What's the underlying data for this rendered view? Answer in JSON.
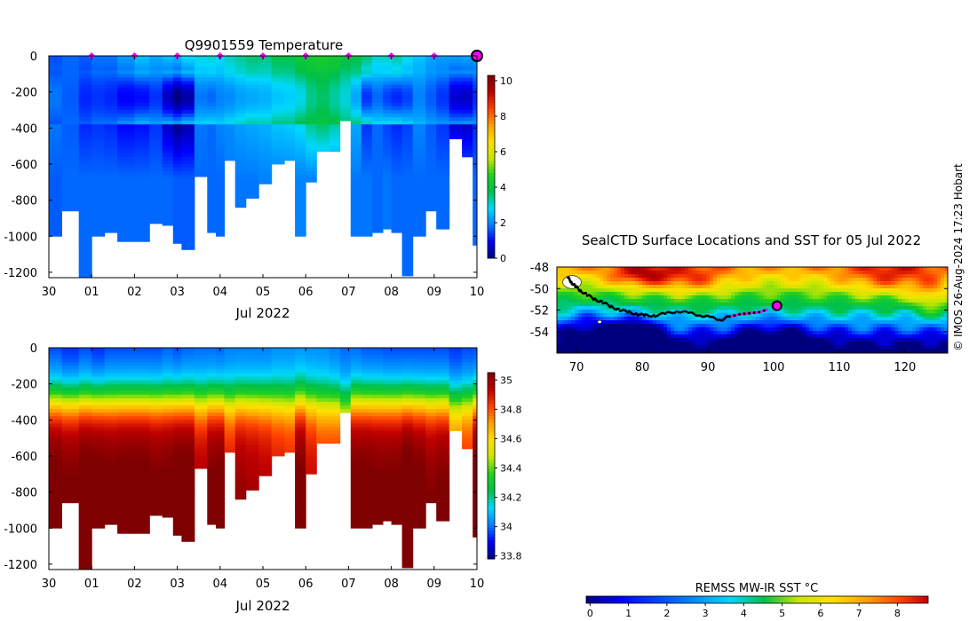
{
  "colors": {
    "jet": [
      "#00007f",
      "#0000ff",
      "#0080ff",
      "#00d8ff",
      "#00c04a",
      "#20d020",
      "#c8e600",
      "#ffe000",
      "#ffa000",
      "#ff4000",
      "#c00000",
      "#7f0000"
    ],
    "float_marker": "#ff00ff",
    "track": "#000000"
  },
  "chart_data": [
    {
      "type": "heatmap",
      "title": "Q9901559  Temperature",
      "xlabel": "Jul 2022",
      "x_ticks": [
        "30",
        "01",
        "02",
        "03",
        "04",
        "05",
        "06",
        "07",
        "08",
        "09",
        "10"
      ],
      "y_ticks": [
        "0",
        "-200",
        "-400",
        "-600",
        "-800",
        "-1000",
        "-1200"
      ],
      "ylim": [
        -1230,
        0
      ],
      "colorbar": {
        "min": 0,
        "max": 10.3,
        "ticks": [
          "10",
          "8",
          "6",
          "4",
          "2",
          "0"
        ]
      },
      "profile_markers_days": [
        1,
        2,
        3,
        4,
        5,
        6,
        7,
        8,
        9
      ],
      "latest_marker_day": 10,
      "profiles": [
        {
          "t": 0.0,
          "depth": 1000,
          "surf": 1.5,
          "core": 1.8,
          "deep": 1.6
        },
        {
          "t": 0.3,
          "depth": 860,
          "surf": 1.7,
          "core": 1.6,
          "deep": 1.7
        },
        {
          "t": 0.7,
          "depth": 1230,
          "surf": 1.6,
          "core": 1.2,
          "deep": 1.7
        },
        {
          "t": 1.0,
          "depth": 1000,
          "surf": 1.8,
          "core": 1.3,
          "deep": 1.7
        },
        {
          "t": 1.3,
          "depth": 980,
          "surf": 1.8,
          "core": 1.2,
          "deep": 1.7
        },
        {
          "t": 1.6,
          "depth": 1030,
          "surf": 2.2,
          "core": 0.9,
          "deep": 1.7
        },
        {
          "t": 2.0,
          "depth": 1030,
          "surf": 2.6,
          "core": 1.0,
          "deep": 1.7
        },
        {
          "t": 2.35,
          "depth": 930,
          "surf": 2.3,
          "core": 1.3,
          "deep": 1.7
        },
        {
          "t": 2.65,
          "depth": 940,
          "surf": 2.6,
          "core": 0.5,
          "deep": 1.7
        },
        {
          "t": 2.9,
          "depth": 1040,
          "surf": 2.5,
          "core": 0.0,
          "deep": 1.6
        },
        {
          "t": 3.1,
          "depth": 1075,
          "surf": 2.9,
          "core": 0.3,
          "deep": 1.6
        },
        {
          "t": 3.4,
          "depth": 670,
          "surf": 3.0,
          "core": 1.8,
          "deep": 1.7
        },
        {
          "t": 3.7,
          "depth": 980,
          "surf": 3.1,
          "core": 1.7,
          "deep": 1.7
        },
        {
          "t": 3.9,
          "depth": 1000,
          "surf": 2.9,
          "core": 1.9,
          "deep": 1.7
        },
        {
          "t": 4.1,
          "depth": 580,
          "surf": 3.2,
          "core": 2.0,
          "deep": 1.8
        },
        {
          "t": 4.35,
          "depth": 840,
          "surf": 3.4,
          "core": 2.2,
          "deep": 1.8
        },
        {
          "t": 4.6,
          "depth": 790,
          "surf": 3.6,
          "core": 2.3,
          "deep": 1.8
        },
        {
          "t": 4.9,
          "depth": 710,
          "surf": 3.5,
          "core": 2.4,
          "deep": 1.9
        },
        {
          "t": 5.2,
          "depth": 600,
          "surf": 3.8,
          "core": 2.6,
          "deep": 1.9
        },
        {
          "t": 5.5,
          "depth": 580,
          "surf": 3.8,
          "core": 2.7,
          "deep": 1.9
        },
        {
          "t": 5.75,
          "depth": 1000,
          "surf": 4.2,
          "core": 2.9,
          "deep": 1.9
        },
        {
          "t": 6.0,
          "depth": 700,
          "surf": 4.3,
          "core": 3.4,
          "deep": 1.9
        },
        {
          "t": 6.25,
          "depth": 530,
          "surf": 4.4,
          "core": 3.6,
          "deep": 1.9
        },
        {
          "t": 6.55,
          "depth": 530,
          "surf": 4.3,
          "core": 3.3,
          "deep": 1.9
        },
        {
          "t": 6.8,
          "depth": 360,
          "surf": 3.9,
          "core": 3.0,
          "deep": 1.9
        },
        {
          "t": 7.05,
          "depth": 1000,
          "surf": 3.9,
          "core": 2.3,
          "deep": 1.8
        },
        {
          "t": 7.3,
          "depth": 1000,
          "surf": 3.6,
          "core": 1.3,
          "deep": 1.8
        },
        {
          "t": 7.55,
          "depth": 980,
          "surf": 3.1,
          "core": 1.7,
          "deep": 1.7
        },
        {
          "t": 7.8,
          "depth": 960,
          "surf": 3.2,
          "core": 1.4,
          "deep": 1.8
        },
        {
          "t": 8.0,
          "depth": 980,
          "surf": 3.4,
          "core": 1.2,
          "deep": 1.7
        },
        {
          "t": 8.25,
          "depth": 1220,
          "surf": 3.0,
          "core": 1.4,
          "deep": 1.7
        },
        {
          "t": 8.5,
          "depth": 1000,
          "surf": 2.6,
          "core": 1.9,
          "deep": 1.7
        },
        {
          "t": 8.8,
          "depth": 860,
          "surf": 2.3,
          "core": 1.6,
          "deep": 1.7
        },
        {
          "t": 9.05,
          "depth": 960,
          "surf": 2.2,
          "core": 1.3,
          "deep": 1.7
        },
        {
          "t": 9.35,
          "depth": 460,
          "surf": 2.2,
          "core": 0.6,
          "deep": 1.8
        },
        {
          "t": 9.65,
          "depth": 560,
          "surf": 2.3,
          "core": 0.5,
          "deep": 1.8
        },
        {
          "t": 9.9,
          "depth": 1050,
          "surf": 2.2,
          "core": 1.2,
          "deep": 1.7
        }
      ]
    },
    {
      "type": "heatmap",
      "xlabel": "Jul 2022",
      "x_ticks": [
        "30",
        "01",
        "02",
        "03",
        "04",
        "05",
        "06",
        "07",
        "08",
        "09",
        "10"
      ],
      "y_ticks": [
        "0",
        "-200",
        "-400",
        "-600",
        "-800",
        "-1000",
        "-1200"
      ],
      "ylim": [
        -1230,
        0
      ],
      "colorbar": {
        "min": 33.78,
        "max": 35.05,
        "ticks": [
          "35",
          "34.8",
          "34.6",
          "34.4",
          "34.2",
          "34",
          "33.8"
        ]
      },
      "profiles": [
        {
          "t": 0.0,
          "depth": 1000,
          "surf": 33.95,
          "deep": 34.95
        },
        {
          "t": 0.3,
          "depth": 860,
          "surf": 33.92,
          "deep": 34.92
        },
        {
          "t": 0.7,
          "depth": 1230,
          "surf": 33.95,
          "deep": 34.96
        },
        {
          "t": 1.0,
          "depth": 1000,
          "surf": 33.92,
          "deep": 34.95
        },
        {
          "t": 1.3,
          "depth": 980,
          "surf": 33.95,
          "deep": 34.94
        },
        {
          "t": 1.6,
          "depth": 1030,
          "surf": 33.95,
          "deep": 34.95
        },
        {
          "t": 2.0,
          "depth": 1030,
          "surf": 33.95,
          "deep": 34.95
        },
        {
          "t": 2.35,
          "depth": 930,
          "surf": 33.95,
          "deep": 34.93
        },
        {
          "t": 2.65,
          "depth": 940,
          "surf": 33.97,
          "deep": 34.94
        },
        {
          "t": 2.9,
          "depth": 1040,
          "surf": 33.95,
          "deep": 34.96
        },
        {
          "t": 3.1,
          "depth": 1075,
          "surf": 33.97,
          "deep": 34.96
        },
        {
          "t": 3.4,
          "depth": 670,
          "surf": 33.98,
          "deep": 34.85
        },
        {
          "t": 3.7,
          "depth": 980,
          "surf": 33.98,
          "deep": 34.93
        },
        {
          "t": 3.9,
          "depth": 1000,
          "surf": 33.97,
          "deep": 34.94
        },
        {
          "t": 4.1,
          "depth": 580,
          "surf": 34.0,
          "deep": 34.8
        },
        {
          "t": 4.35,
          "depth": 840,
          "surf": 34.0,
          "deep": 34.88
        },
        {
          "t": 4.6,
          "depth": 790,
          "surf": 34.0,
          "deep": 34.86
        },
        {
          "t": 4.9,
          "depth": 710,
          "surf": 34.0,
          "deep": 34.84
        },
        {
          "t": 5.2,
          "depth": 600,
          "surf": 34.02,
          "deep": 34.8
        },
        {
          "t": 5.5,
          "depth": 580,
          "surf": 34.02,
          "deep": 34.78
        },
        {
          "t": 5.75,
          "depth": 1000,
          "surf": 34.03,
          "deep": 34.94
        },
        {
          "t": 6.0,
          "depth": 700,
          "surf": 34.02,
          "deep": 34.82
        },
        {
          "t": 6.25,
          "depth": 530,
          "surf": 34.02,
          "deep": 34.76
        },
        {
          "t": 6.55,
          "depth": 530,
          "surf": 34.0,
          "deep": 34.76
        },
        {
          "t": 6.8,
          "depth": 360,
          "surf": 33.98,
          "deep": 34.62
        },
        {
          "t": 7.05,
          "depth": 1000,
          "surf": 33.98,
          "deep": 34.94
        },
        {
          "t": 7.3,
          "depth": 1000,
          "surf": 33.96,
          "deep": 34.94
        },
        {
          "t": 7.55,
          "depth": 980,
          "surf": 33.96,
          "deep": 34.93
        },
        {
          "t": 7.8,
          "depth": 960,
          "surf": 33.95,
          "deep": 34.93
        },
        {
          "t": 8.0,
          "depth": 980,
          "surf": 33.95,
          "deep": 34.93
        },
        {
          "t": 8.25,
          "depth": 1220,
          "surf": 33.95,
          "deep": 34.97
        },
        {
          "t": 8.5,
          "depth": 1000,
          "surf": 33.95,
          "deep": 34.94
        },
        {
          "t": 8.8,
          "depth": 860,
          "surf": 33.95,
          "deep": 34.9
        },
        {
          "t": 9.05,
          "depth": 960,
          "surf": 33.95,
          "deep": 34.92
        },
        {
          "t": 9.35,
          "depth": 460,
          "surf": 33.93,
          "deep": 34.7
        },
        {
          "t": 9.65,
          "depth": 560,
          "surf": 33.95,
          "deep": 34.76
        },
        {
          "t": 9.9,
          "depth": 1050,
          "surf": 33.95,
          "deep": 34.95
        }
      ]
    },
    {
      "type": "heatmap",
      "title": "SealCTD Surface Locations and SST for 05 Jul 2022",
      "x_ticks": [
        "70",
        "80",
        "90",
        "100",
        "110",
        "120"
      ],
      "y_ticks": [
        "-48",
        "-50",
        "-52",
        "-54"
      ],
      "xlim": [
        67,
        126.5
      ],
      "ylim": [
        -56,
        -48
      ],
      "colorbar": {
        "label": "REMSS MW-IR SST °C",
        "min": -0.1,
        "max": 8.8,
        "ticks": [
          "0",
          "1",
          "2",
          "3",
          "4",
          "5",
          "6",
          "7",
          "8"
        ]
      },
      "track": [
        [
          68.7,
          -49.0
        ],
        [
          69.2,
          -49.4
        ],
        [
          69.8,
          -49.8
        ],
        [
          70.6,
          -50.2
        ],
        [
          71.6,
          -50.6
        ],
        [
          72.8,
          -51.0
        ],
        [
          74.0,
          -51.3
        ],
        [
          75.3,
          -51.7
        ],
        [
          76.6,
          -52.0
        ],
        [
          78.0,
          -52.2
        ],
        [
          79.3,
          -52.4
        ],
        [
          80.5,
          -52.5
        ],
        [
          82.0,
          -52.5
        ],
        [
          83.8,
          -52.3
        ],
        [
          85.5,
          -52.1
        ],
        [
          87.3,
          -52.3
        ],
        [
          89.0,
          -52.5
        ],
        [
          90.5,
          -52.7
        ],
        [
          92.0,
          -52.9
        ],
        [
          93.3,
          -52.6
        ]
      ],
      "track_highlight": [
        [
          93.3,
          -52.6
        ],
        [
          94.8,
          -52.4
        ],
        [
          96.3,
          -52.3
        ],
        [
          97.8,
          -52.2
        ],
        [
          99.3,
          -51.9
        ]
      ],
      "latest_position": [
        100.5,
        -51.6
      ]
    }
  ],
  "credit": "© IMOS 26-Aug-2024 17:23 Hobart"
}
